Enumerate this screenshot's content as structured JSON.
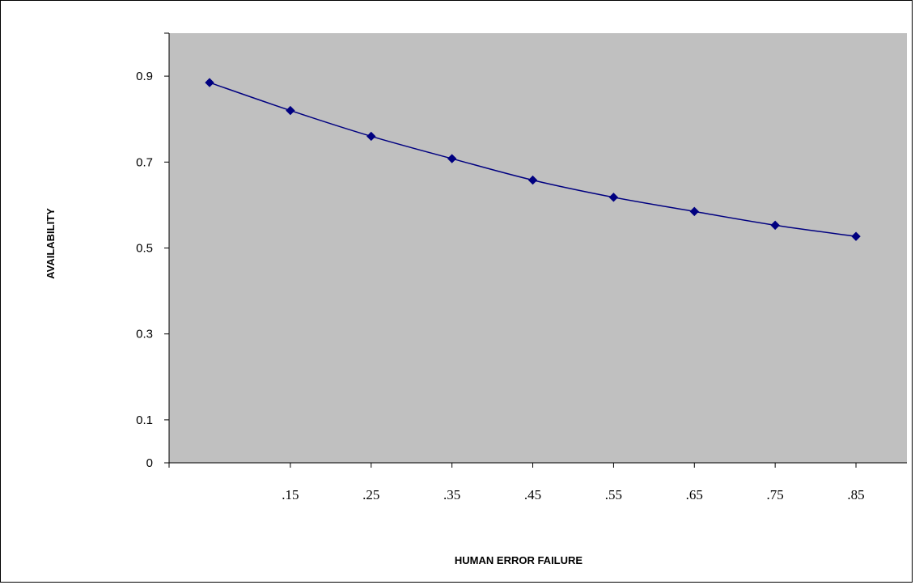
{
  "chart_data": {
    "type": "line",
    "title": "",
    "xlabel": "HUMAN ERROR FAILURE",
    "ylabel": "AVAILABILITY",
    "x": [
      0.05,
      0.15,
      0.25,
      0.35,
      0.45,
      0.55,
      0.65,
      0.75,
      0.85
    ],
    "x_tick_labels": [
      ".15",
      ".25",
      ".35",
      ".45",
      ".55",
      ".65",
      ".75",
      ".85"
    ],
    "x_tick_values": [
      0.15,
      0.25,
      0.35,
      0.45,
      0.55,
      0.65,
      0.75,
      0.85
    ],
    "xlim": [
      -0.0001,
      0.88
    ],
    "series": [
      {
        "name": "",
        "color": "#000080",
        "marker": "diamond",
        "values": [
          0.885,
          0.82,
          0.76,
          0.708,
          0.658,
          0.618,
          0.585,
          0.553,
          0.527
        ]
      }
    ],
    "y_ticks": [
      0,
      0.1,
      0.3,
      0.5,
      0.7,
      0.9
    ],
    "y_tick_labels": [
      "0",
      "0.1",
      "0.3",
      "0.5",
      "0.7",
      "0.9"
    ],
    "ylim": [
      0,
      1.0
    ],
    "grid": false,
    "plot_background": "#c0c0c0",
    "legend": "none"
  }
}
